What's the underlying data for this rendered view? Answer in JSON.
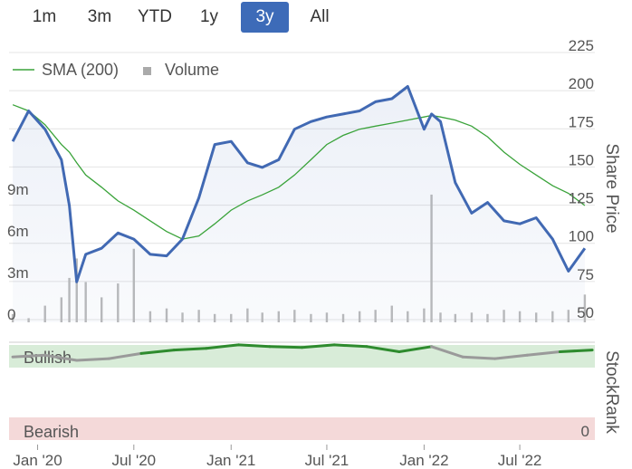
{
  "range_buttons": [
    {
      "label": "1m",
      "active": false
    },
    {
      "label": "3m",
      "active": false
    },
    {
      "label": "YTD",
      "active": false
    },
    {
      "label": "1y",
      "active": false
    },
    {
      "label": "3y",
      "active": true
    },
    {
      "label": "All",
      "active": false
    }
  ],
  "colors": {
    "price_line": "#4169b3",
    "sma_line": "#3aa33a",
    "volume": "#bbbbbb",
    "bullish_band": "#d8ecd8",
    "bearish_band": "#f4d9d9",
    "bullish_text": "#c0504d",
    "stockrank_bull": "#2e8b2e",
    "stockrank_bear": "#9a9a9a"
  },
  "chart_data": [
    {
      "type": "line",
      "legend": [
        {
          "name": "SMA (200)",
          "symbol": "line"
        },
        {
          "name": "Volume",
          "symbol": "square"
        }
      ],
      "y_right_label": "Share Price",
      "y_right_ticks": [
        50,
        75,
        100,
        125,
        150,
        175,
        200,
        225
      ],
      "y_right_range": [
        50,
        225
      ],
      "y_left_ticks": [
        "0",
        "3m",
        "6m",
        "9m"
      ],
      "y_left_range": [
        0,
        12
      ],
      "x_ticks": [
        "Jan '20",
        "Jul '20",
        "Jan '21",
        "Jul '21",
        "Jan '22",
        "Jul '22"
      ],
      "x": [
        "2019-11-15",
        "2019-12-15",
        "2020-01-15",
        "2020-02-15",
        "2020-03-01",
        "2020-03-15",
        "2020-04-01",
        "2020-05-01",
        "2020-06-01",
        "2020-07-01",
        "2020-08-01",
        "2020-09-01",
        "2020-10-01",
        "2020-11-01",
        "2020-12-01",
        "2021-01-01",
        "2021-02-01",
        "2021-03-01",
        "2021-04-01",
        "2021-05-01",
        "2021-06-01",
        "2021-07-01",
        "2021-08-01",
        "2021-09-01",
        "2021-10-01",
        "2021-11-01",
        "2021-12-01",
        "2022-01-01",
        "2022-01-15",
        "2022-02-01",
        "2022-03-01",
        "2022-04-01",
        "2022-05-01",
        "2022-06-01",
        "2022-07-01",
        "2022-08-01",
        "2022-09-01",
        "2022-10-01",
        "2022-11-01"
      ],
      "series": [
        {
          "name": "Share Price",
          "values": [
            162,
            182,
            170,
            150,
            120,
            70,
            88,
            92,
            102,
            98,
            88,
            87,
            98,
            125,
            160,
            162,
            148,
            145,
            150,
            170,
            175,
            178,
            180,
            182,
            188,
            190,
            198,
            170,
            180,
            175,
            135,
            115,
            122,
            110,
            108,
            112,
            98,
            77,
            92
          ]
        },
        {
          "name": "SMA (200)",
          "values": [
            186,
            182,
            173,
            160,
            155,
            148,
            140,
            132,
            123,
            117,
            110,
            103,
            98,
            100,
            108,
            117,
            123,
            127,
            132,
            140,
            150,
            160,
            166,
            170,
            172,
            174,
            176,
            178,
            179,
            178,
            176,
            172,
            165,
            155,
            147,
            140,
            133,
            128,
            120
          ]
        }
      ],
      "volume_millions": [
        0.6,
        0.3,
        1.2,
        1.8,
        3.2,
        4.6,
        2.9,
        1.8,
        2.8,
        5.3,
        0.8,
        1.0,
        0.7,
        0.9,
        0.6,
        0.6,
        1.0,
        0.7,
        0.8,
        0.9,
        0.6,
        0.7,
        0.6,
        0.8,
        0.9,
        1.2,
        0.8,
        1.0,
        9.2,
        0.7,
        0.6,
        0.7,
        0.6,
        0.9,
        0.8,
        0.7,
        0.8,
        0.9,
        2.0
      ]
    },
    {
      "type": "line",
      "y_right_label": "StockRank",
      "y_right_ticks": [
        "0"
      ],
      "bands": [
        "Bullish",
        "Bearish"
      ],
      "x": [
        "2019-11-15",
        "2020-01-15",
        "2020-03-15",
        "2020-05-15",
        "2020-07-15",
        "2020-09-15",
        "2020-11-15",
        "2021-01-15",
        "2021-03-15",
        "2021-05-15",
        "2021-07-15",
        "2021-09-15",
        "2021-11-15",
        "2022-01-15",
        "2022-03-15",
        "2022-05-15",
        "2022-07-15",
        "2022-09-15",
        "2022-11-15"
      ],
      "series": [
        {
          "name": "StockRank",
          "values": [
            84,
            86,
            80,
            82,
            88,
            92,
            94,
            98,
            96,
            95,
            98,
            96,
            90,
            96,
            84,
            82,
            86,
            90,
            92
          ]
        }
      ]
    }
  ]
}
